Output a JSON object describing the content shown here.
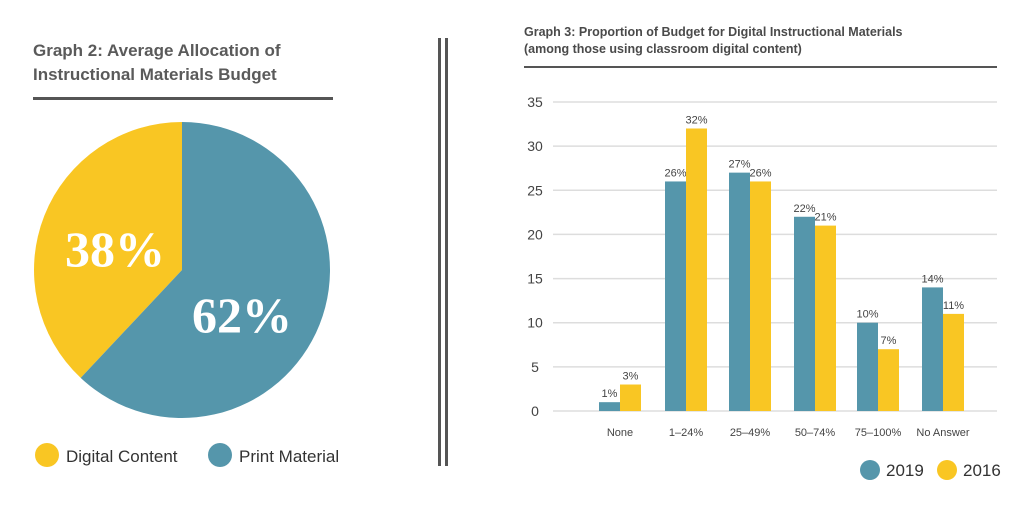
{
  "colors": {
    "teal": "#5596ab",
    "yellow": "#f9c623"
  },
  "chart_data": [
    {
      "type": "pie",
      "title_lines": [
        "Graph 2: Average Allocation of",
        "Instructional Materials Budget"
      ],
      "slices": [
        {
          "name": "Digital Content",
          "value": 38,
          "label": "38%",
          "color": "#f9c623"
        },
        {
          "name": "Print Material",
          "value": 62,
          "label": "62%",
          "color": "#5596ab"
        }
      ],
      "legend": "bottom"
    },
    {
      "type": "bar",
      "title_lines": [
        "Graph 3: Proportion of Budget for Digital Instructional Materials",
        "(among those using classroom digital content)"
      ],
      "categories": [
        "None",
        "1–24%",
        "25–49%",
        "50–74%",
        "75–100%",
        "No Answer"
      ],
      "series": [
        {
          "name": "2019",
          "values": [
            1,
            26,
            27,
            22,
            10,
            14
          ],
          "labels": [
            "1%",
            "26%",
            "27%",
            "22%",
            "10%",
            "14%"
          ],
          "color": "#5596ab"
        },
        {
          "name": "2016",
          "values": [
            3,
            32,
            26,
            21,
            7,
            11
          ],
          "labels": [
            "3%",
            "32%",
            "26%",
            "21%",
            "7%",
            "11%"
          ],
          "color": "#f9c623"
        }
      ],
      "ylim": [
        0,
        35
      ],
      "yticks": [
        0,
        5,
        10,
        15,
        20,
        25,
        30,
        35
      ],
      "grid": true,
      "legend": "bottom-right"
    }
  ]
}
